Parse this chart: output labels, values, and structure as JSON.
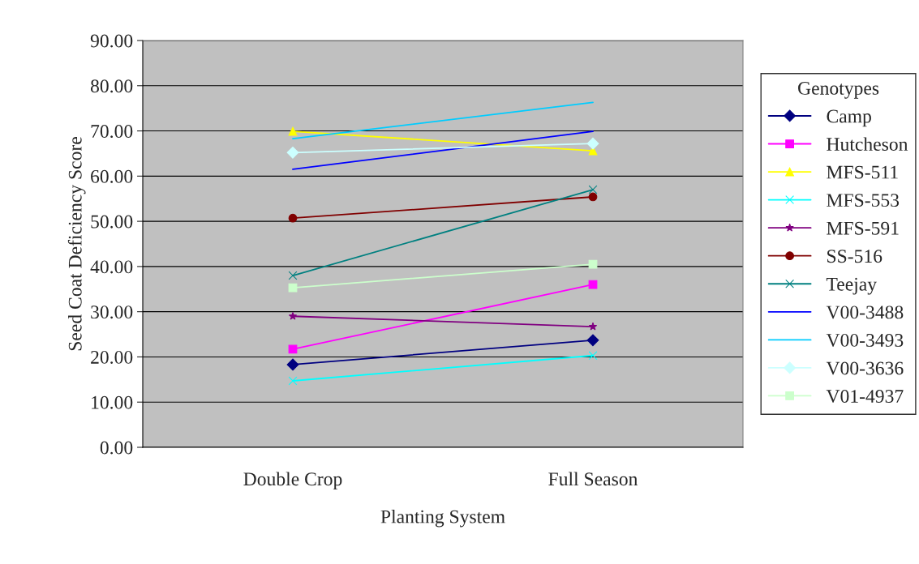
{
  "chart_data": {
    "type": "line",
    "xlabel": "Planting System",
    "ylabel": "Seed Coat Deficiency Score",
    "legend_title": "Genotypes",
    "categories": [
      "Double Crop",
      "Full Season"
    ],
    "ylim": [
      0,
      90
    ],
    "yticks": [
      {
        "value": 0,
        "label": "0.00"
      },
      {
        "value": 10,
        "label": "10.00"
      },
      {
        "value": 20,
        "label": "20.00"
      },
      {
        "value": 30,
        "label": "30.00"
      },
      {
        "value": 40,
        "label": "40.00"
      },
      {
        "value": 50,
        "label": "50.00"
      },
      {
        "value": 60,
        "label": "60.00"
      },
      {
        "value": 70,
        "label": "70.00"
      },
      {
        "value": 80,
        "label": "80.00"
      },
      {
        "value": 90,
        "label": "90.00"
      }
    ],
    "grid": "y",
    "legend": "right",
    "series": [
      {
        "name": "Camp",
        "color": "#000080",
        "marker": "diamond",
        "values": [
          18.3,
          23.7
        ]
      },
      {
        "name": "Hutcheson",
        "color": "#ff00ff",
        "marker": "square",
        "values": [
          21.7,
          36.0
        ]
      },
      {
        "name": "MFS-511",
        "color": "#ffff00",
        "marker": "triangle",
        "values": [
          69.9,
          65.6
        ]
      },
      {
        "name": "MFS-553",
        "color": "#00ffff",
        "marker": "cross",
        "values": [
          14.7,
          20.3
        ]
      },
      {
        "name": "MFS-591",
        "color": "#800080",
        "marker": "star",
        "values": [
          29.0,
          26.7
        ]
      },
      {
        "name": "SS-516",
        "color": "#800000",
        "marker": "circle",
        "values": [
          50.7,
          55.4
        ]
      },
      {
        "name": "Teejay",
        "color": "#008080",
        "marker": "cross",
        "values": [
          38.0,
          57.0
        ]
      },
      {
        "name": "V00-3488",
        "color": "#0000ff",
        "marker": "none",
        "values": [
          61.5,
          69.9
        ]
      },
      {
        "name": "V00-3493",
        "color": "#00ccff",
        "marker": "none",
        "values": [
          68.3,
          76.3
        ]
      },
      {
        "name": "V00-3636",
        "color": "#ccffff",
        "marker": "diamond",
        "values": [
          65.2,
          67.2
        ]
      },
      {
        "name": "V01-4937",
        "color": "#ccffcc",
        "marker": "square",
        "values": [
          35.3,
          40.5
        ]
      }
    ]
  }
}
